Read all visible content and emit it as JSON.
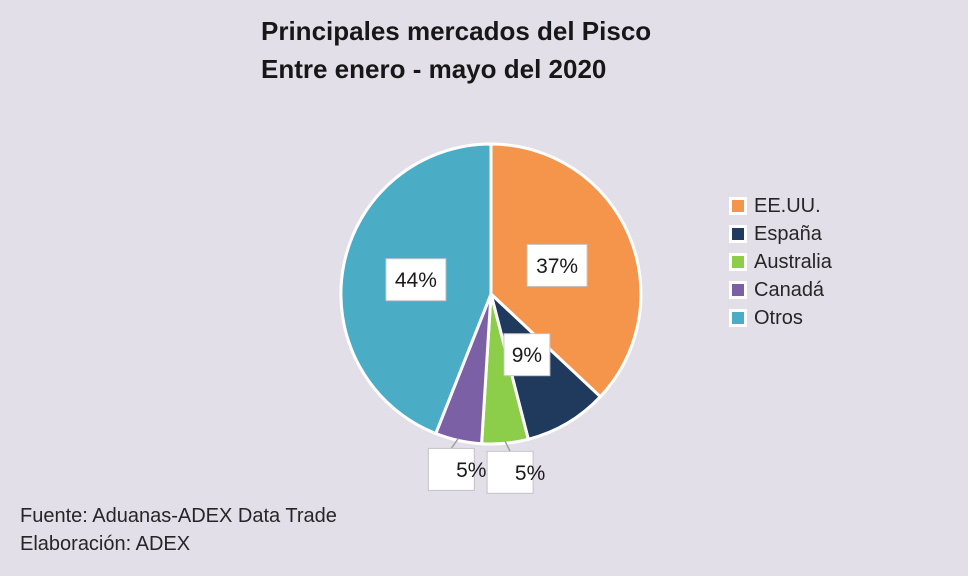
{
  "title": {
    "line1": "Principales mercados del Pisco",
    "line2": "Entre enero - mayo del 2020"
  },
  "footer": {
    "source": "Fuente: Aduanas-ADEX Data Trade",
    "elaboration": "Elaboración: ADEX"
  },
  "colors": {
    "background": "#E3DFE9",
    "slice_border": "#FFFFFF",
    "label_box_fill": "#FFFFFF",
    "label_box_border": "#C3C3C3",
    "label_text": "#1A1A1A",
    "leader_line": "#A0A0A0",
    "title_text": "#171717",
    "body_text": "#262626"
  },
  "chart_data": {
    "type": "pie",
    "title": "Principales mercados del Pisco Entre enero - mayo del 2020",
    "legend_position": "right",
    "start_angle_deg": 0,
    "direction": "clockwise",
    "units": "percent",
    "slices": [
      {
        "label": "EE.UU.",
        "value": 37,
        "display": "37%",
        "color": "#F5954B",
        "label_placement": "inside",
        "label_radius": 0.48
      },
      {
        "label": "España",
        "value": 9,
        "display": "9%",
        "color": "#1F3A5C",
        "label_placement": "inside",
        "label_radius": 0.47
      },
      {
        "label": "Australia",
        "value": 5,
        "display": "5%",
        "color": "#8CCD4A",
        "label_placement": "outside"
      },
      {
        "label": "Canadá",
        "value": 5,
        "display": "5%",
        "color": "#7C60A5",
        "label_placement": "outside"
      },
      {
        "label": "Otros",
        "value": 44,
        "display": "44%",
        "color": "#4AACC5",
        "label_placement": "inside",
        "label_radius": 0.51
      }
    ]
  }
}
